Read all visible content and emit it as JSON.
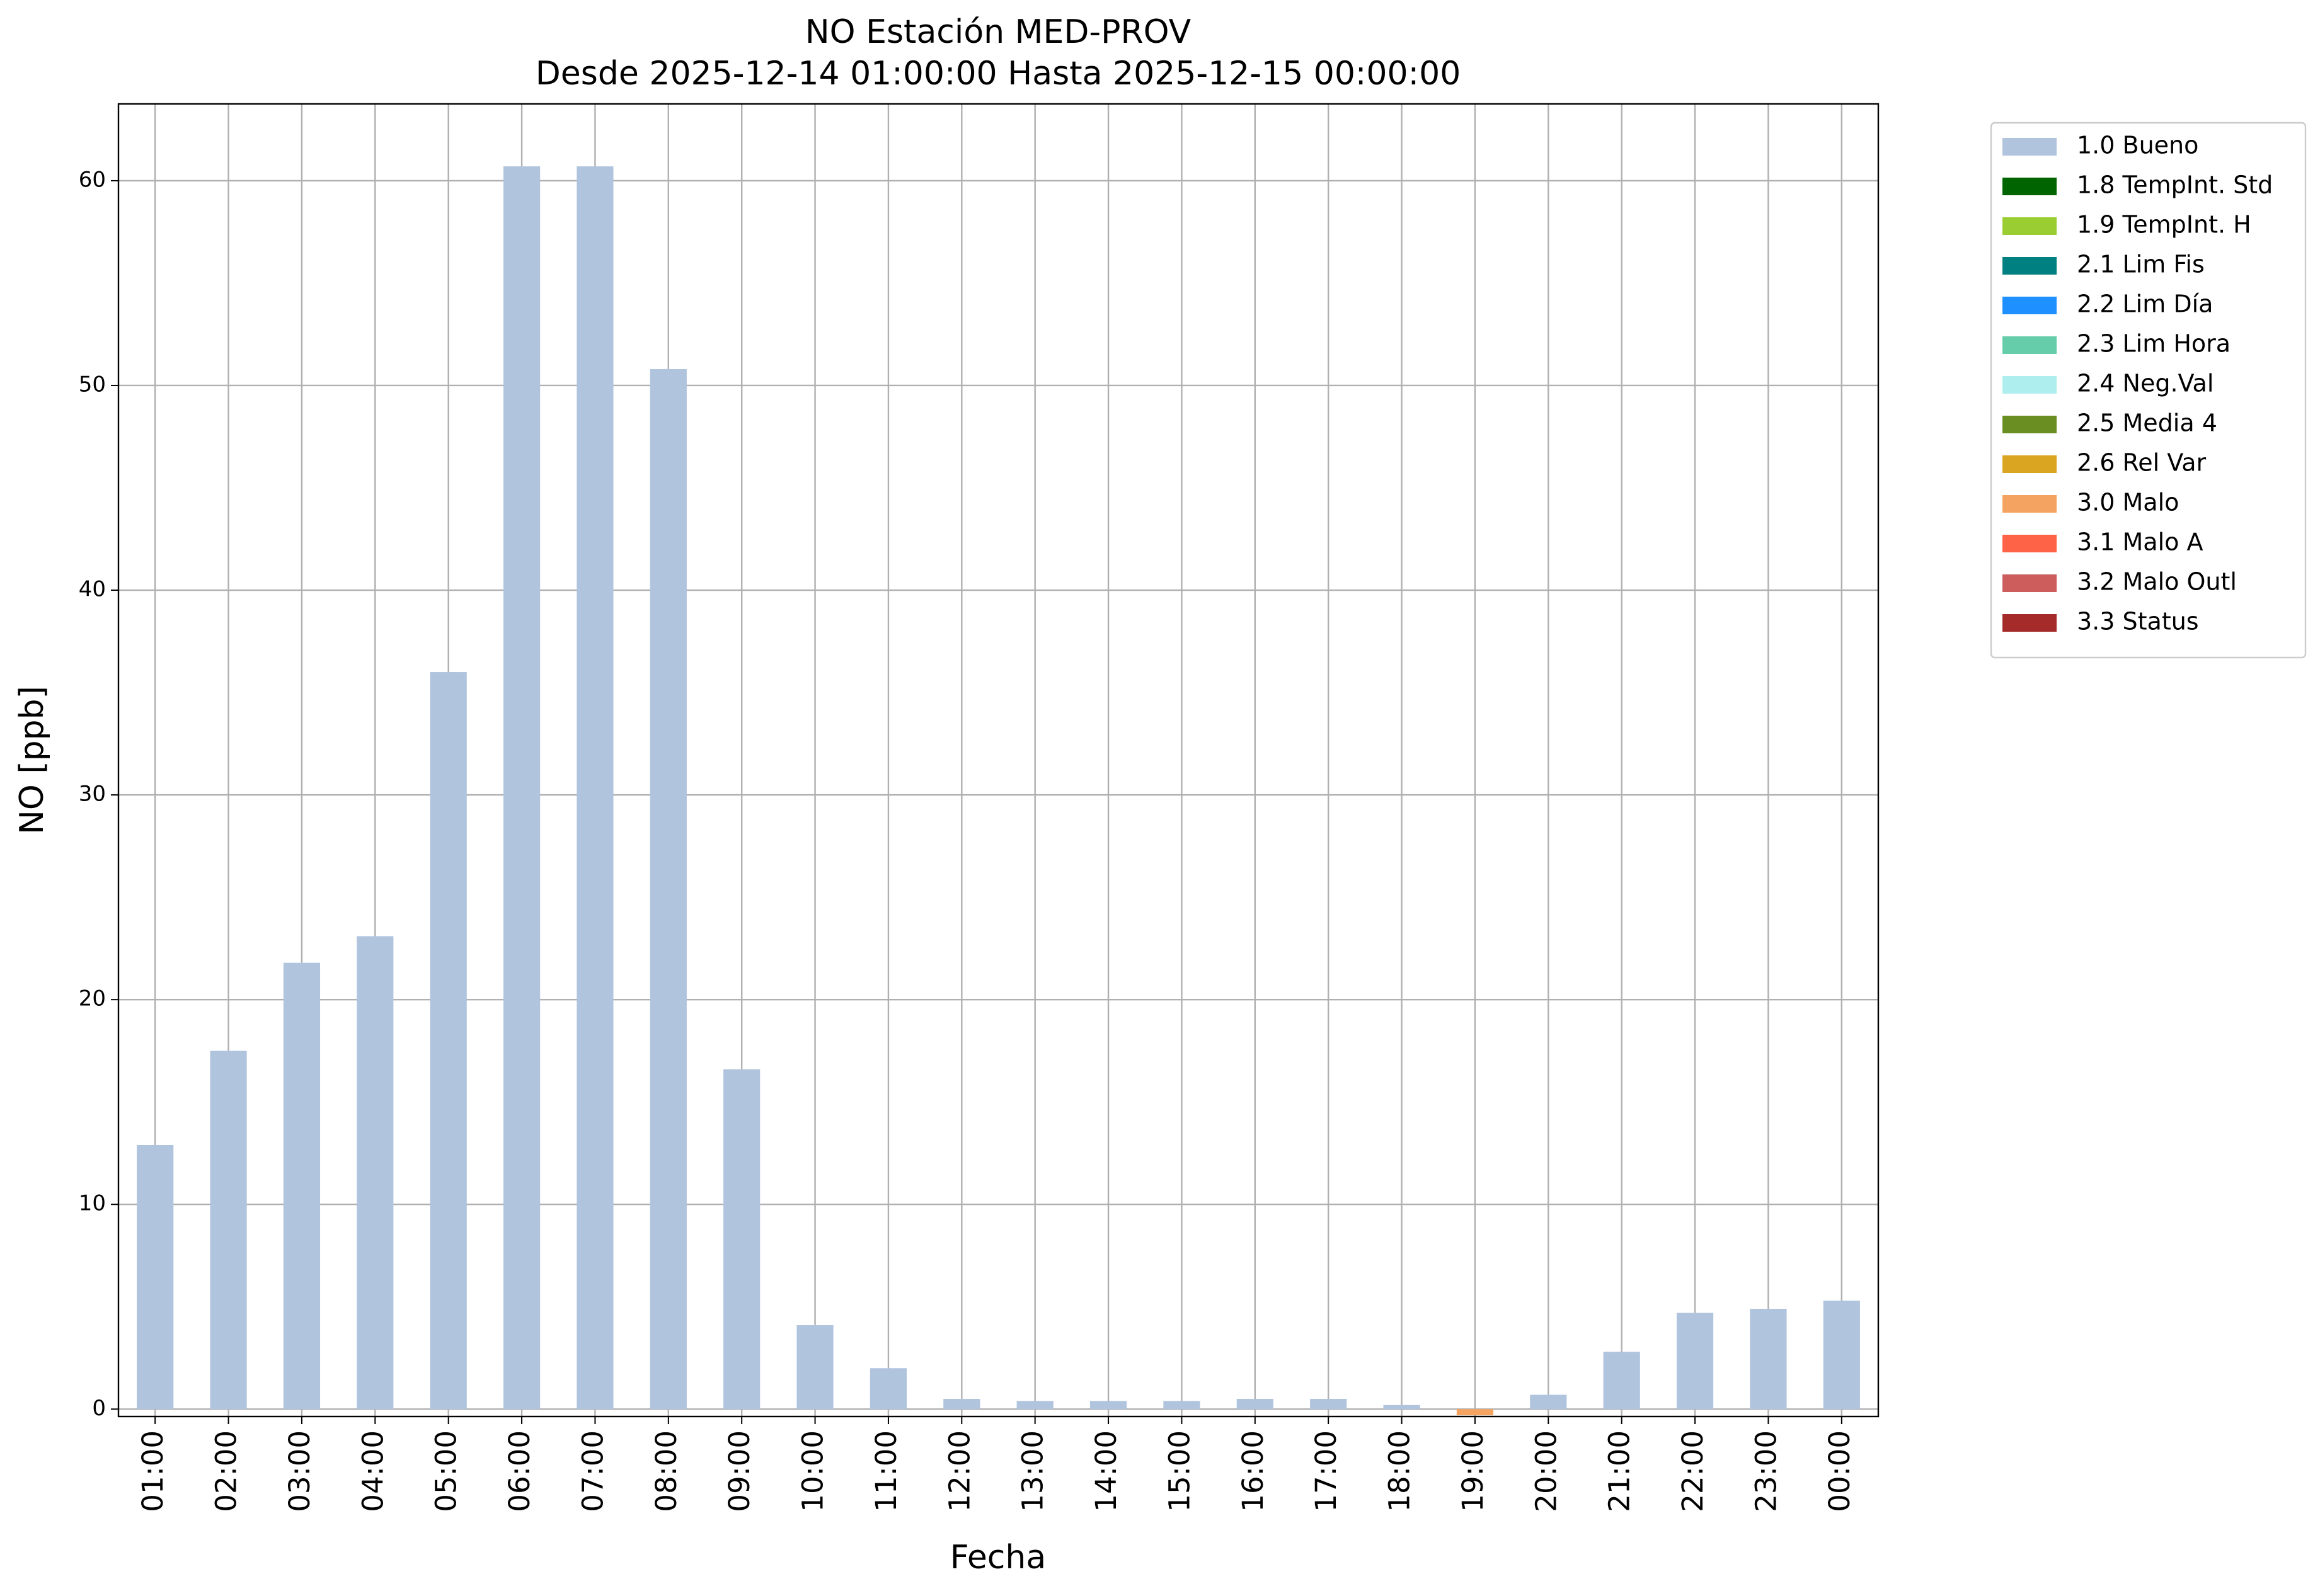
{
  "chart_data": {
    "type": "bar",
    "stacked": true,
    "title": "NO Estación MED-PROV",
    "subtitle": "Desde 2025-12-14 01:00:00 Hasta 2025-12-15 00:00:00",
    "x_label": "Fecha",
    "y_label": "NO [ppb]",
    "categories": [
      "01:00",
      "02:00",
      "03:00",
      "04:00",
      "05:00",
      "06:00",
      "07:00",
      "08:00",
      "09:00",
      "10:00",
      "11:00",
      "12:00",
      "13:00",
      "14:00",
      "15:00",
      "16:00",
      "17:00",
      "18:00",
      "19:00",
      "20:00",
      "21:00",
      "22:00",
      "23:00",
      "00:00"
    ],
    "series": [
      {
        "name": "1.0 Bueno",
        "color": "#b0c4de",
        "values": [
          12.9,
          17.5,
          21.8,
          23.1,
          36.0,
          60.7,
          60.7,
          50.8,
          16.6,
          4.1,
          2.0,
          0.5,
          0.4,
          0.4,
          0.4,
          0.5,
          0.5,
          0.2,
          null,
          0.7,
          2.8,
          4.7,
          4.9,
          5.3
        ]
      },
      {
        "name": "1.8 TempInt. Std",
        "color": "#006400",
        "values": [
          null,
          null,
          null,
          null,
          null,
          null,
          null,
          null,
          null,
          null,
          null,
          null,
          null,
          null,
          null,
          null,
          null,
          null,
          null,
          null,
          null,
          null,
          null,
          null
        ]
      },
      {
        "name": "1.9 TempInt. H",
        "color": "#9acd32",
        "values": [
          null,
          null,
          null,
          null,
          null,
          null,
          null,
          null,
          null,
          null,
          null,
          null,
          null,
          null,
          null,
          null,
          null,
          null,
          null,
          null,
          null,
          null,
          null,
          null
        ]
      },
      {
        "name": "2.1 Lim Fis",
        "color": "#008080",
        "values": [
          null,
          null,
          null,
          null,
          null,
          null,
          null,
          null,
          null,
          null,
          null,
          null,
          null,
          null,
          null,
          null,
          null,
          null,
          null,
          null,
          null,
          null,
          null,
          null
        ]
      },
      {
        "name": "2.2 Lim Día",
        "color": "#1e90ff",
        "values": [
          null,
          null,
          null,
          null,
          null,
          null,
          null,
          null,
          null,
          null,
          null,
          null,
          null,
          null,
          null,
          null,
          null,
          null,
          null,
          null,
          null,
          null,
          null,
          null
        ]
      },
      {
        "name": "2.3 Lim Hora",
        "color": "#66cdaa",
        "values": [
          null,
          null,
          null,
          null,
          null,
          null,
          null,
          null,
          null,
          null,
          null,
          null,
          null,
          null,
          null,
          null,
          null,
          null,
          null,
          null,
          null,
          null,
          null,
          null
        ]
      },
      {
        "name": "2.4 Neg.Val",
        "color": "#afeeee",
        "values": [
          null,
          null,
          null,
          null,
          null,
          null,
          null,
          null,
          null,
          null,
          null,
          null,
          null,
          null,
          null,
          null,
          null,
          null,
          null,
          null,
          null,
          null,
          null,
          null
        ]
      },
      {
        "name": "2.5 Media 4",
        "color": "#6b8e23",
        "values": [
          null,
          null,
          null,
          null,
          null,
          null,
          null,
          null,
          null,
          null,
          null,
          null,
          null,
          null,
          null,
          null,
          null,
          null,
          null,
          null,
          null,
          null,
          null,
          null
        ]
      },
      {
        "name": "2.6 Rel Var",
        "color": "#daa520",
        "values": [
          null,
          null,
          null,
          null,
          null,
          null,
          null,
          null,
          null,
          null,
          null,
          null,
          null,
          null,
          null,
          null,
          null,
          null,
          null,
          null,
          null,
          null,
          null,
          null
        ]
      },
      {
        "name": "3.0 Malo",
        "color": "#f4a460",
        "values": [
          null,
          null,
          null,
          null,
          null,
          null,
          null,
          null,
          null,
          null,
          null,
          null,
          null,
          null,
          null,
          null,
          null,
          null,
          -0.3,
          null,
          null,
          null,
          null,
          null
        ]
      },
      {
        "name": "3.1 Malo A",
        "color": "#ff6347",
        "values": [
          null,
          null,
          null,
          null,
          null,
          null,
          null,
          null,
          null,
          null,
          null,
          null,
          null,
          null,
          null,
          null,
          null,
          null,
          null,
          null,
          null,
          null,
          null,
          null
        ]
      },
      {
        "name": "3.2 Malo Outl",
        "color": "#cd5c5c",
        "values": [
          null,
          null,
          null,
          null,
          null,
          null,
          null,
          null,
          null,
          null,
          null,
          null,
          null,
          null,
          null,
          null,
          null,
          null,
          null,
          null,
          null,
          null,
          null,
          null
        ]
      },
      {
        "name": "3.3 Status",
        "color": "#a52a2a",
        "values": [
          null,
          null,
          null,
          null,
          null,
          null,
          null,
          null,
          null,
          null,
          null,
          null,
          null,
          null,
          null,
          null,
          null,
          null,
          null,
          null,
          null,
          null,
          null,
          null
        ]
      }
    ],
    "ylim": [
      -0.36,
      63.75
    ],
    "yticks": [
      0,
      10,
      20,
      30,
      40,
      50,
      60
    ],
    "grid": true,
    "legend": "outside-right"
  }
}
